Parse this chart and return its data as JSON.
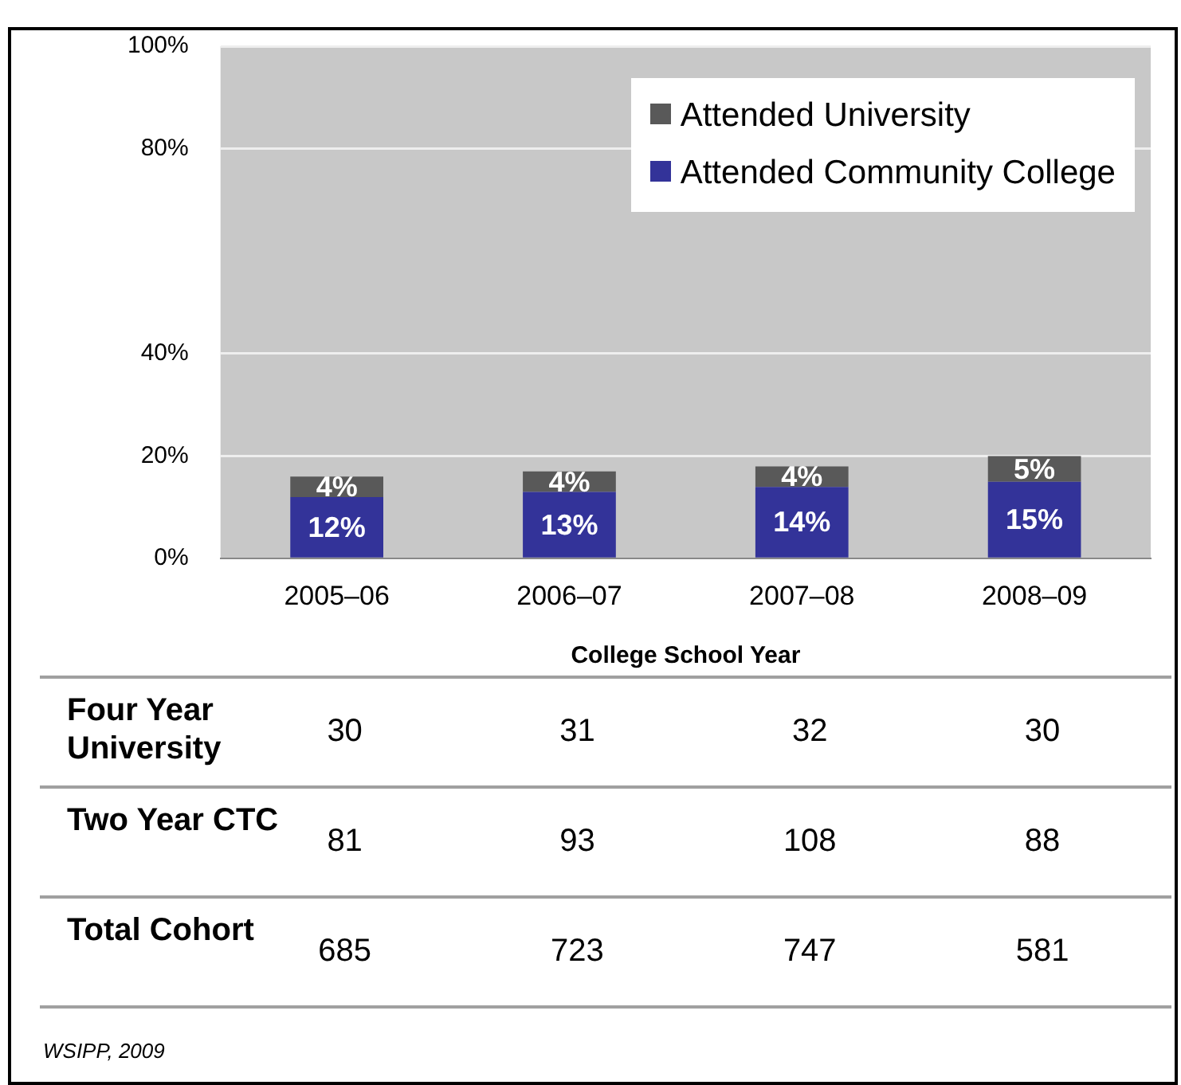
{
  "chart_data": [
    {
      "type": "bar",
      "xlabel": "College School Year",
      "categories": [
        "2005–06",
        "2006–07",
        "2007–08",
        "2008–09"
      ],
      "stacked": true,
      "series": [
        {
          "name": "Attended Community College",
          "color": "#333399",
          "values": [
            12,
            13,
            14,
            15
          ],
          "value_labels": [
            "12%",
            "13%",
            "14%",
            "15%"
          ]
        },
        {
          "name": "Attended University",
          "color": "#595959",
          "values": [
            4,
            4,
            4,
            5
          ],
          "value_labels": [
            "4%",
            "4%",
            "4%",
            "5%"
          ]
        }
      ],
      "ylim": [
        0,
        100
      ],
      "yticks": [
        {
          "value": 0,
          "label": "0%"
        },
        {
          "value": 20,
          "label": "20%"
        },
        {
          "value": 40,
          "label": "40%"
        },
        {
          "value": 80,
          "label": "80%"
        },
        {
          "value": 100,
          "label": "100%"
        }
      ],
      "grid": "y",
      "legend": "top right"
    },
    {
      "type": "heatmap",
      "categories": [
        null,
        null,
        null,
        null
      ],
      "y_categories": [
        "Four Year University",
        "Two Year CTC",
        "Total Cohort"
      ],
      "cells": [
        [
          30,
          31,
          32,
          30
        ],
        [
          81,
          93,
          108,
          88
        ],
        [
          685,
          723,
          747,
          581
        ]
      ],
      "data_labels": true,
      "annotations": [
        "WSIPP, 2009"
      ]
    }
  ]
}
